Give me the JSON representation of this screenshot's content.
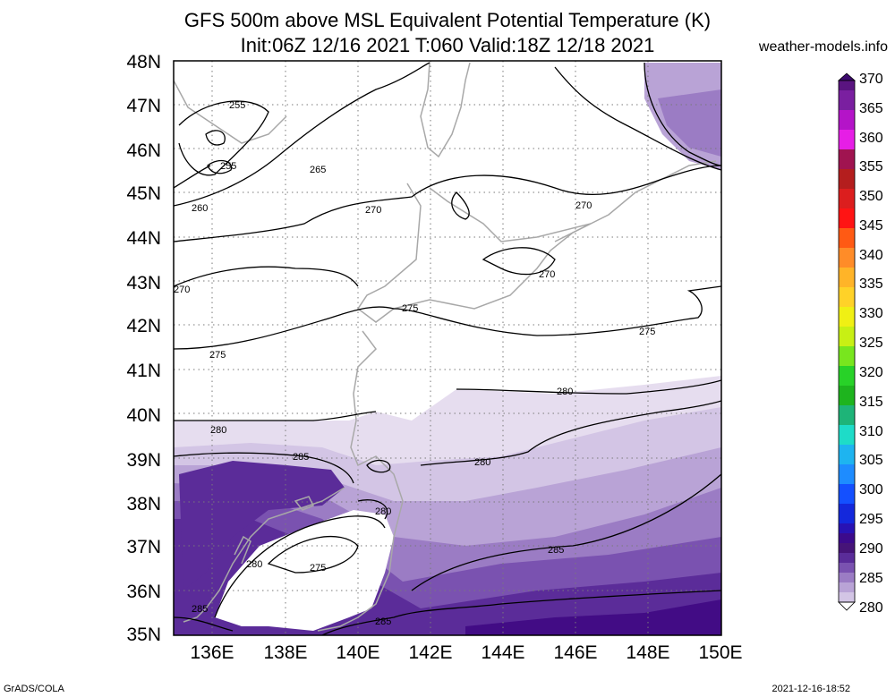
{
  "title_line1": "GFS 500m above MSL Equivalent Potential Temperature (K)",
  "title_line2": "Init:06Z 12/16 2021 T:060 Valid:18Z 12/18 2021",
  "site": "weather-models.info",
  "footer_left": "GrADS/COLA",
  "footer_right": "2021-12-16-18:52",
  "lat_labels": [
    "48N",
    "47N",
    "46N",
    "45N",
    "44N",
    "43N",
    "42N",
    "41N",
    "40N",
    "39N",
    "38N",
    "37N",
    "36N",
    "35N"
  ],
  "lon_labels": [
    "136E",
    "138E",
    "140E",
    "142E",
    "144E",
    "146E",
    "148E",
    "150E"
  ],
  "colorbar_labels": [
    "370",
    "365",
    "360",
    "355",
    "350",
    "345",
    "340",
    "335",
    "330",
    "325",
    "320",
    "315",
    "310",
    "305",
    "300",
    "295",
    "290",
    "285",
    "280"
  ],
  "contour_labels": [
    "255",
    "255",
    "265",
    "260",
    "270",
    "270",
    "270",
    "270",
    "275",
    "275",
    "275",
    "280",
    "280",
    "280",
    "285",
    "285",
    "280",
    "275",
    "280",
    "285",
    "285"
  ],
  "colors": {
    "c280": "#e6ddef",
    "c282": "#d3c5e5",
    "c284": "#b9a3d6",
    "c286": "#9b7cc4",
    "c288": "#7a52b0",
    "c290": "#5b2c99",
    "c292": "#420c85",
    "coast": "#a8a8a8",
    "contour": "#000000",
    "grid": "#7a7a7a"
  }
}
